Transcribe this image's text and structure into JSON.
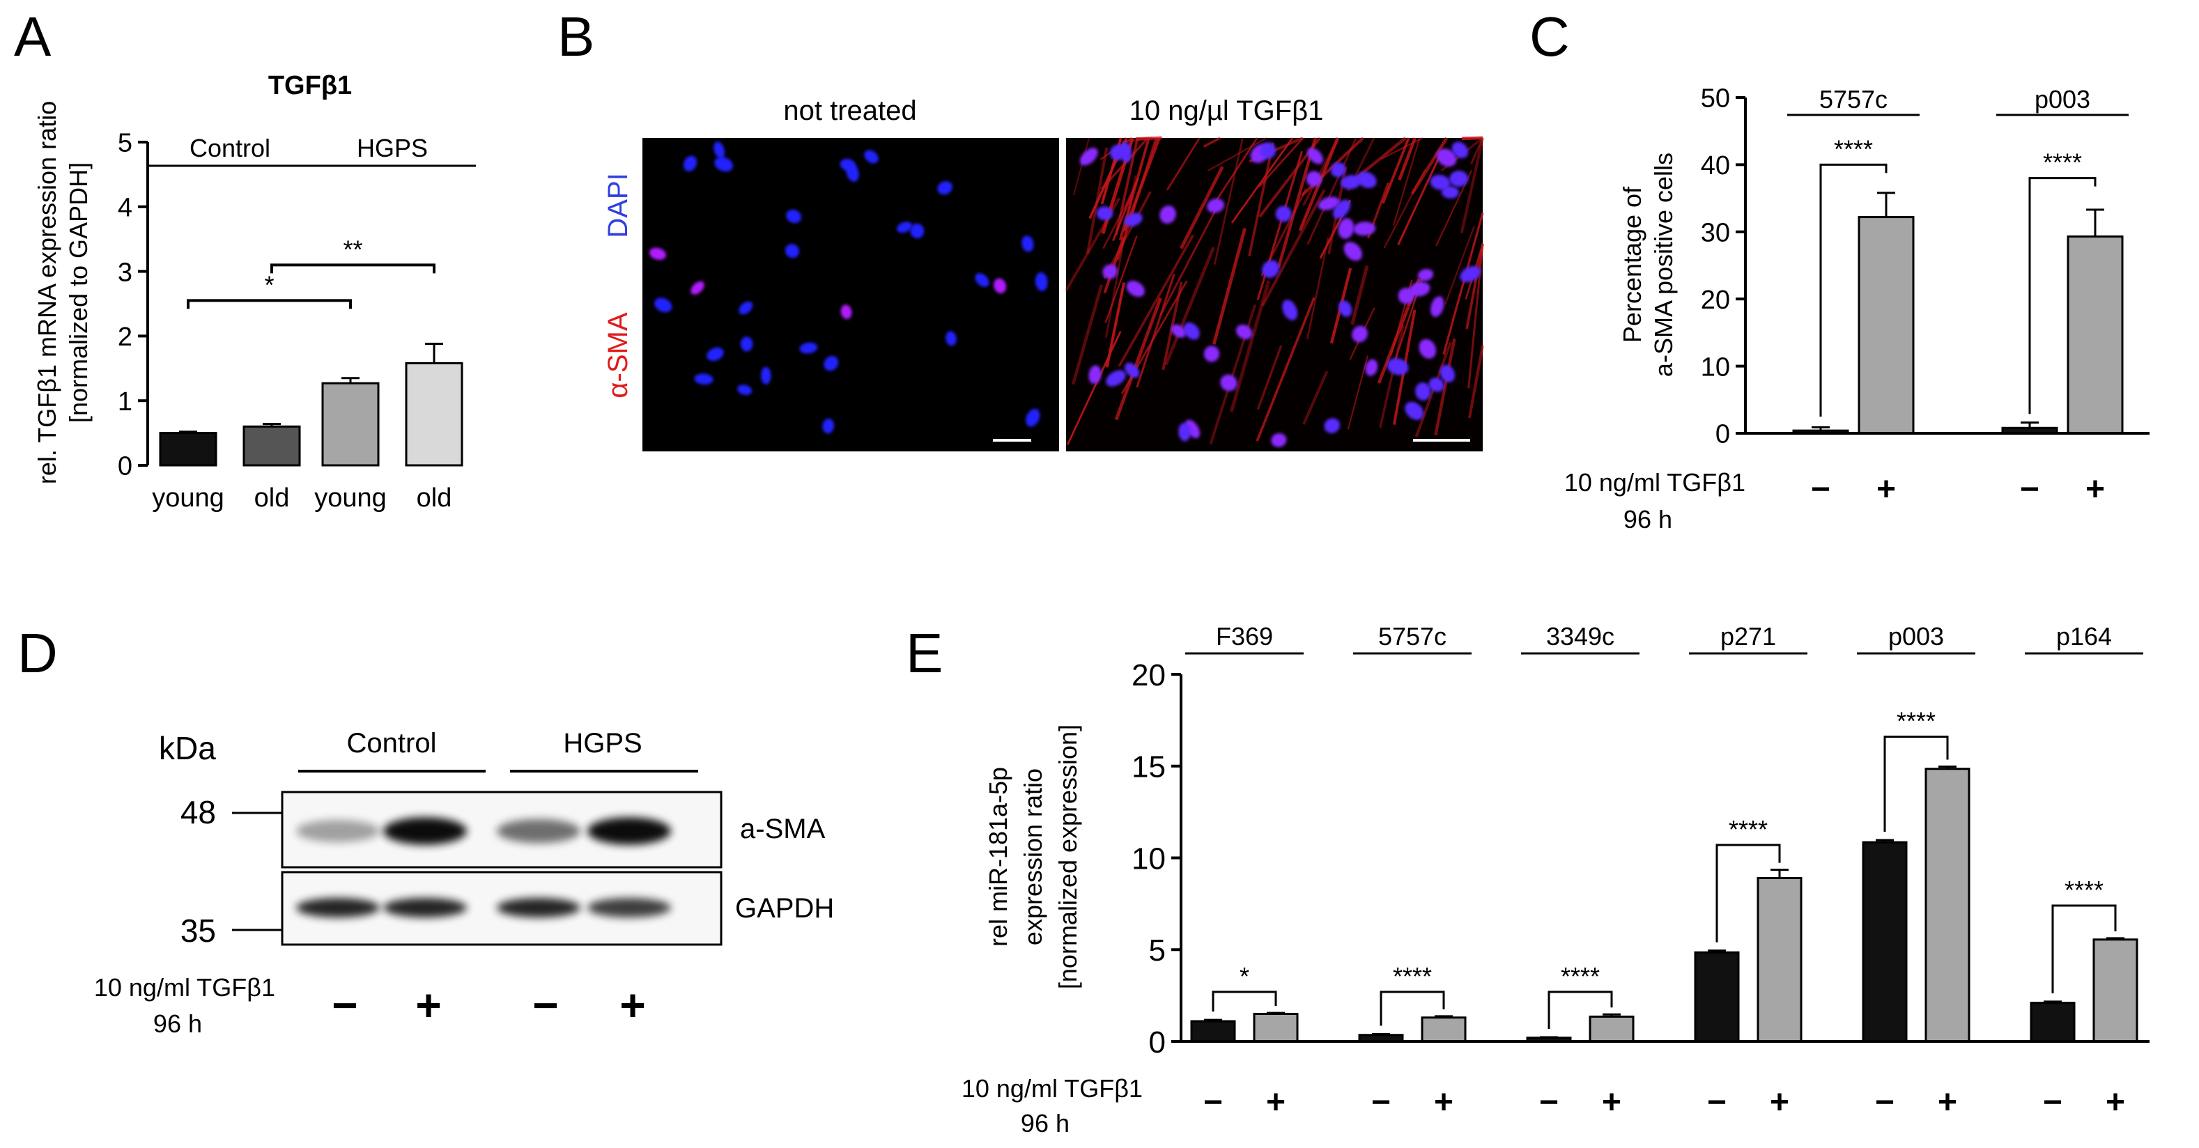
{
  "panels": {
    "A": {
      "letter": "A"
    },
    "B": {
      "letter": "B",
      "condition_labels": [
        "not treated",
        "10 ng/µl TGFβ1"
      ],
      "stain_labels": [
        "DAPI",
        "α-SMA"
      ]
    },
    "C": {
      "letter": "C"
    },
    "D": {
      "letter": "D",
      "kda_label": "kDa",
      "markers": [
        "48",
        "35"
      ],
      "group_labels": [
        "Control",
        "HGPS"
      ],
      "band_labels": [
        "a-SMA",
        "GAPDH"
      ],
      "treatment_line1": "10 ng/ml TGFβ1",
      "treatment_line2": "96 h",
      "treatment_signs": [
        "−",
        "+",
        "−",
        "+"
      ],
      "band_intensity": {
        "a-SMA": [
          0.35,
          0.95,
          0.55,
          0.95
        ],
        "GAPDH": [
          0.85,
          0.85,
          0.85,
          0.75
        ]
      }
    },
    "E": {
      "letter": "E"
    }
  },
  "chart_data": [
    {
      "panel": "A",
      "type": "bar",
      "title": "TGFβ1",
      "ylabel_line1": "rel. TGFβ1 mRNA expression ratio",
      "ylabel_line2": "[normalized to GAPDH]",
      "categories": [
        "young",
        "old",
        "young",
        "old"
      ],
      "values": [
        0.5,
        0.6,
        1.27,
        1.58
      ],
      "errors": [
        0.02,
        0.04,
        0.08,
        0.3
      ],
      "colors": [
        "#111111",
        "#555555",
        "#a6a6a6",
        "#d9d9d9"
      ],
      "ylim": [
        0,
        5
      ],
      "yticks": [
        0,
        1,
        2,
        3,
        4,
        5
      ],
      "groups": [
        {
          "label": "Control",
          "from": 0,
          "to": 1
        },
        {
          "label": "HGPS",
          "from": 2,
          "to": 3
        }
      ],
      "significance": [
        {
          "from": 0,
          "to": 2,
          "label": "*",
          "y": 2.55
        },
        {
          "from": 1,
          "to": 3,
          "label": "**",
          "y": 3.1
        }
      ]
    },
    {
      "panel": "C",
      "type": "bar",
      "ylabel_line1": "Percentage of",
      "ylabel_line2": "a-SMA positive cells",
      "groups": [
        "5757c",
        "p003"
      ],
      "values": [
        [
          0.4,
          32.2
        ],
        [
          0.8,
          29.3
        ]
      ],
      "errors": [
        [
          0.5,
          3.6
        ],
        [
          0.8,
          4.0
        ]
      ],
      "colors": [
        "#111111",
        "#a6a6a6"
      ],
      "ylim": [
        0,
        50
      ],
      "yticks": [
        0,
        10,
        20,
        30,
        40,
        50
      ],
      "significance": [
        {
          "group": 0,
          "label": "****",
          "y": 40
        },
        {
          "group": 1,
          "label": "****",
          "y": 38
        }
      ],
      "treatment_line1": "10 ng/ml TGFβ1",
      "treatment_line2": "96 h",
      "treatment_signs": [
        "−",
        "+"
      ]
    },
    {
      "panel": "E",
      "type": "bar",
      "ylabel_line1": "rel miR-181a-5p",
      "ylabel_line2": "expression ratio",
      "ylabel_line3": "[normalized expression]",
      "groups": [
        "F369",
        "5757c",
        "3349c",
        "p271",
        "p003",
        "p164"
      ],
      "values": [
        [
          1.1,
          1.5
        ],
        [
          0.35,
          1.3
        ],
        [
          0.2,
          1.35
        ],
        [
          4.85,
          8.9
        ],
        [
          10.85,
          14.85
        ],
        [
          2.1,
          5.55
        ]
      ],
      "errors": [
        [
          0.07,
          0.05
        ],
        [
          0.05,
          0.07
        ],
        [
          0.03,
          0.12
        ],
        [
          0.1,
          0.45
        ],
        [
          0.12,
          0.12
        ],
        [
          0.07,
          0.07
        ]
      ],
      "colors": [
        "#111111",
        "#a6a6a6"
      ],
      "ylim": [
        0,
        20
      ],
      "yticks": [
        0,
        5,
        10,
        15,
        20
      ],
      "significance": [
        {
          "group": 0,
          "label": "*",
          "y": 2.7
        },
        {
          "group": 1,
          "label": "****",
          "y": 2.7
        },
        {
          "group": 2,
          "label": "****",
          "y": 2.7
        },
        {
          "group": 3,
          "label": "****",
          "y": 10.7
        },
        {
          "group": 4,
          "label": "****",
          "y": 16.6
        },
        {
          "group": 5,
          "label": "****",
          "y": 7.4
        }
      ],
      "treatment_line1": "10 ng/ml TGFβ1",
      "treatment_line2": "96 h",
      "treatment_signs": [
        "−",
        "+"
      ]
    }
  ]
}
